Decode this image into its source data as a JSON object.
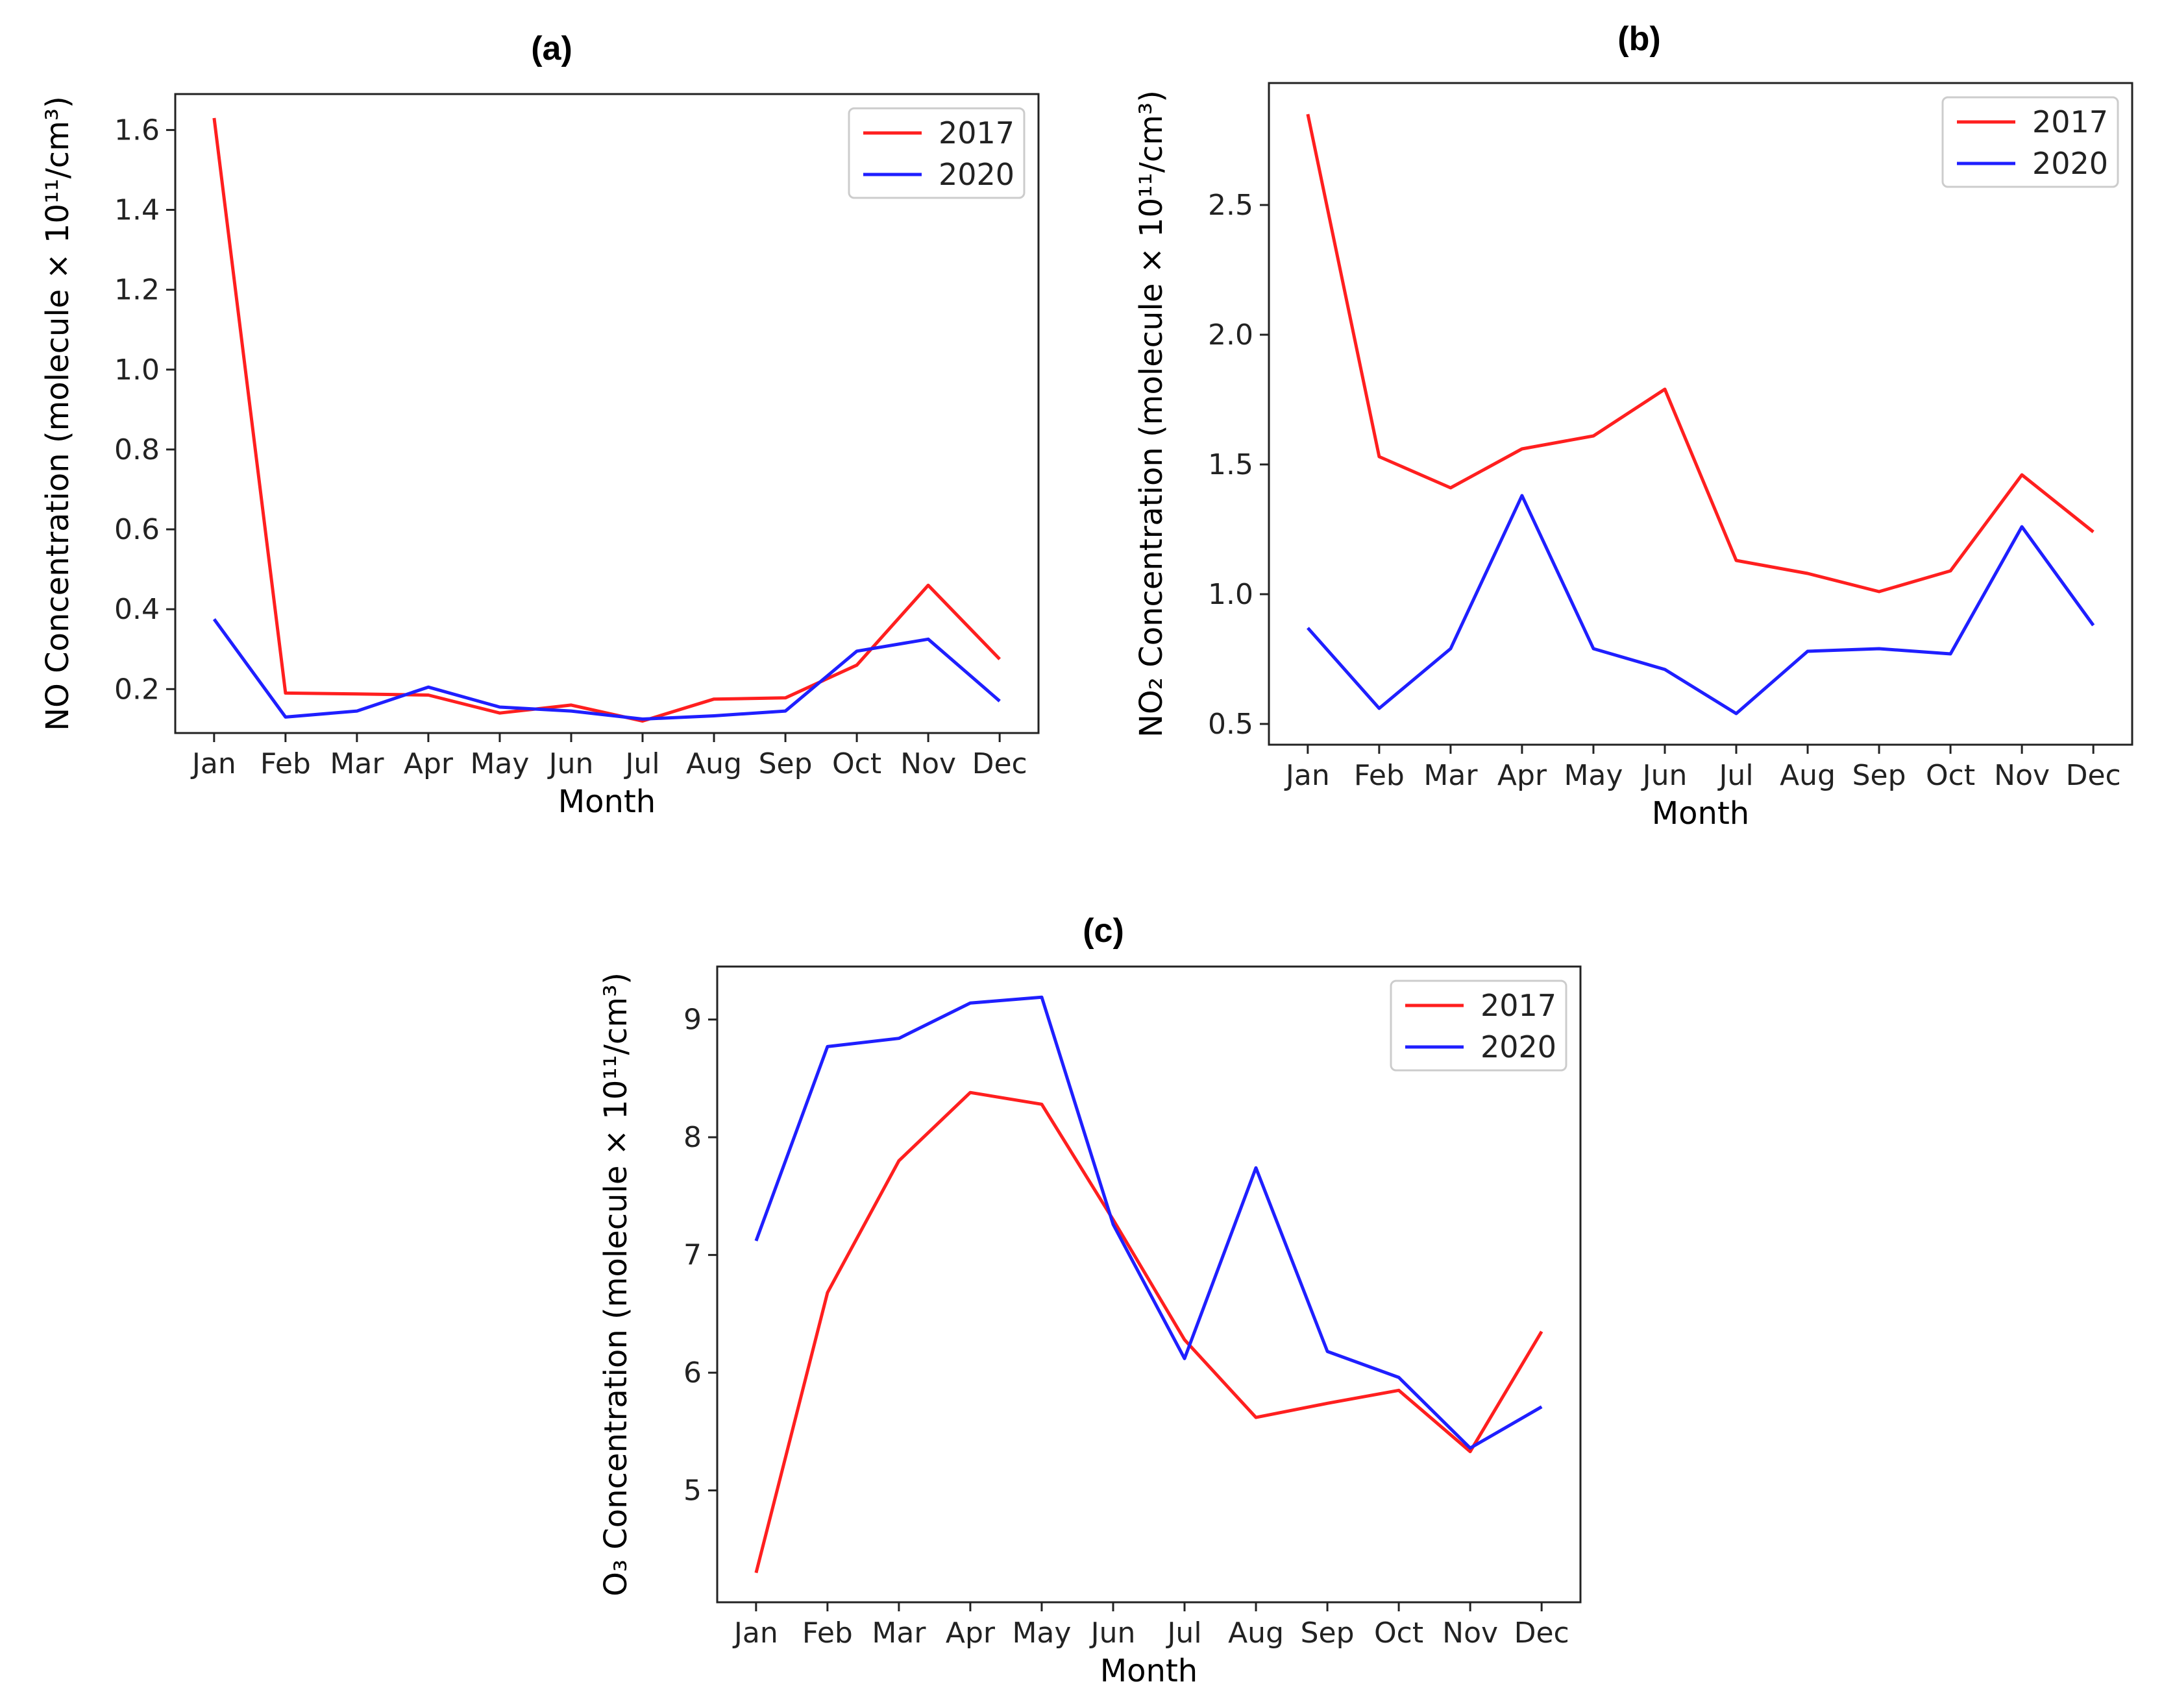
{
  "chart_data": [
    {
      "type": "line",
      "panel_label": "(a)",
      "xlabel": "Month",
      "ylabel": "NO Concentration (molecule × 10¹¹/cm³)",
      "categories": [
        "Jan",
        "Feb",
        "Mar",
        "Apr",
        "May",
        "Jun",
        "Jul",
        "Aug",
        "Sep",
        "Oct",
        "Nov",
        "Dec"
      ],
      "yticks": [
        0.2,
        0.4,
        0.6,
        0.8,
        1.0,
        1.2,
        1.4,
        1.6
      ],
      "ylim": [
        0.09,
        1.69
      ],
      "legend_position": "top-right",
      "grid": false,
      "series": [
        {
          "name": "2017",
          "color": "#ff1f1f",
          "values": [
            1.63,
            0.19,
            0.188,
            0.185,
            0.14,
            0.16,
            0.12,
            0.175,
            0.178,
            0.26,
            0.46,
            0.275
          ]
        },
        {
          "name": "2020",
          "color": "#1f1fff",
          "values": [
            0.375,
            0.13,
            0.145,
            0.205,
            0.155,
            0.145,
            0.125,
            0.133,
            0.145,
            0.295,
            0.325,
            0.17
          ]
        }
      ]
    },
    {
      "type": "line",
      "panel_label": "(b)",
      "xlabel": "Month",
      "ylabel": "NO₂ Concentration (molecule × 10¹¹/cm³)",
      "categories": [
        "Jan",
        "Feb",
        "Mar",
        "Apr",
        "May",
        "Jun",
        "Jul",
        "Aug",
        "Sep",
        "Oct",
        "Nov",
        "Dec"
      ],
      "yticks": [
        0.5,
        1.0,
        1.5,
        2.0,
        2.5
      ],
      "ylim": [
        0.42,
        2.97
      ],
      "legend_position": "top-right",
      "grid": false,
      "series": [
        {
          "name": "2017",
          "color": "#ff1f1f",
          "values": [
            2.85,
            1.53,
            1.41,
            1.56,
            1.61,
            1.79,
            1.13,
            1.08,
            1.01,
            1.09,
            1.46,
            1.24
          ]
        },
        {
          "name": "2020",
          "color": "#1f1fff",
          "values": [
            0.87,
            0.56,
            0.79,
            1.38,
            0.79,
            0.71,
            0.54,
            0.78,
            0.79,
            0.77,
            1.26,
            0.88
          ]
        }
      ]
    },
    {
      "type": "line",
      "panel_label": "(c)",
      "xlabel": "Month",
      "ylabel": "O₃ Concentration (molecule × 10¹¹/cm³)",
      "categories": [
        "Jan",
        "Feb",
        "Mar",
        "Apr",
        "May",
        "Jun",
        "Jul",
        "Aug",
        "Sep",
        "Oct",
        "Nov",
        "Dec"
      ],
      "yticks": [
        5,
        6,
        7,
        8,
        9
      ],
      "ylim": [
        4.05,
        9.45
      ],
      "legend_position": "top-right",
      "grid": false,
      "series": [
        {
          "name": "2017",
          "color": "#ff1f1f",
          "values": [
            4.3,
            6.68,
            7.8,
            8.38,
            8.28,
            7.3,
            6.28,
            5.62,
            5.74,
            5.85,
            5.33,
            6.35
          ]
        },
        {
          "name": "2020",
          "color": "#1f1fff",
          "values": [
            7.12,
            8.77,
            8.84,
            9.14,
            9.19,
            7.26,
            6.12,
            7.74,
            6.18,
            5.96,
            5.36,
            5.71
          ]
        }
      ]
    }
  ]
}
